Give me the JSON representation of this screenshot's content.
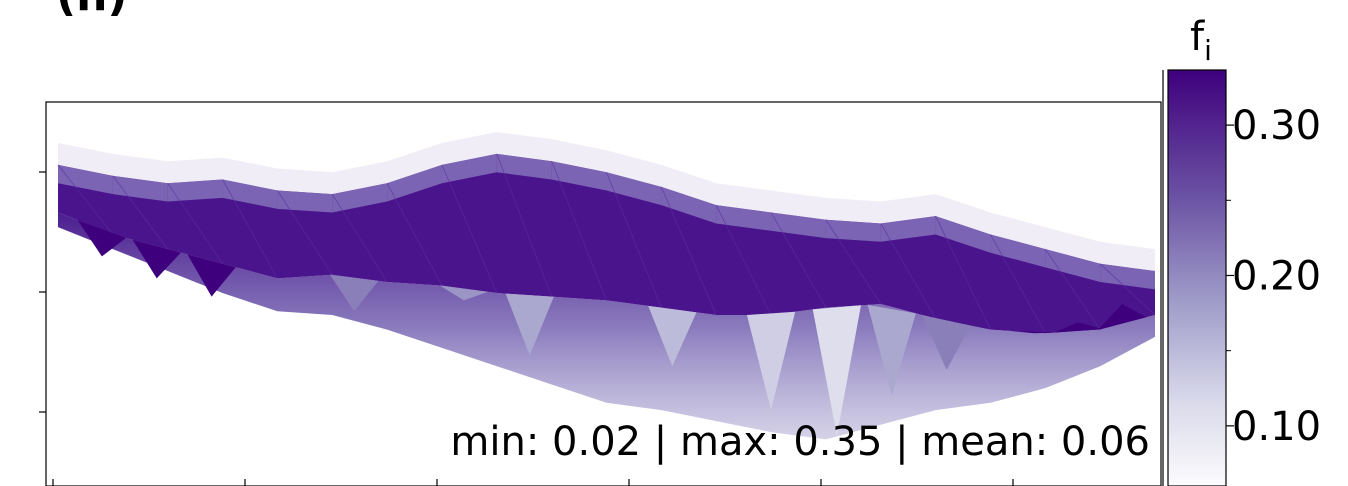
{
  "panel_label": "(h)",
  "chart_data": {
    "type": "heatmap",
    "title": "",
    "xlabel": "",
    "ylabel": "",
    "stats_text": "min: 0.02 | max: 0.35 | mean: 0.06",
    "stats": {
      "min": 0.02,
      "max": 0.35,
      "mean": 0.06
    },
    "colorbar": {
      "label": "f",
      "label_subscript": "i",
      "ticks": [
        "0.30",
        "0.20",
        "0.10"
      ],
      "tick_values": [
        0.3,
        0.2,
        0.1
      ],
      "minor_tick_values": [
        0.25,
        0.15
      ],
      "range": [
        0.06,
        0.33
      ],
      "colormap": "Purples",
      "color_low": "#fcfbfd",
      "color_high": "#3f007d"
    },
    "x_ticks_count": 6,
    "y_ticks_count": 3,
    "x_range": [
      0,
      100
    ],
    "y_range": [
      0,
      100
    ],
    "band": {
      "x": [
        0,
        5,
        10,
        15,
        20,
        25,
        30,
        35,
        40,
        45,
        50,
        55,
        60,
        65,
        70,
        75,
        80,
        85,
        90,
        95,
        100
      ],
      "top": [
        85,
        82,
        80,
        81,
        78,
        77,
        80,
        85,
        88,
        86,
        83,
        79,
        74,
        72,
        70,
        69,
        71,
        66,
        62,
        58,
        56
      ],
      "dark_bottom": [
        72,
        66,
        62,
        58,
        54,
        55,
        53,
        52,
        50,
        49,
        48,
        46,
        44,
        44,
        46,
        47,
        43,
        40,
        39,
        40,
        44
      ],
      "fade_bottom": [
        68,
        62,
        56,
        50,
        45,
        44,
        40,
        35,
        30,
        25,
        20,
        18,
        15,
        12,
        10,
        14,
        18,
        20,
        24,
        30,
        38
      ]
    },
    "spikes": [
      {
        "x": 4,
        "y": 60,
        "value": 0.33
      },
      {
        "x": 9,
        "y": 54,
        "value": 0.33
      },
      {
        "x": 14,
        "y": 49,
        "value": 0.33
      },
      {
        "x": 27,
        "y": 45,
        "value": 0.22
      },
      {
        "x": 37,
        "y": 48,
        "value": 0.2
      },
      {
        "x": 43,
        "y": 33,
        "value": 0.18
      },
      {
        "x": 56,
        "y": 30,
        "value": 0.16
      },
      {
        "x": 65,
        "y": 18,
        "value": 0.14
      },
      {
        "x": 71,
        "y": 11,
        "value": 0.12
      },
      {
        "x": 76,
        "y": 22,
        "value": 0.18
      },
      {
        "x": 81,
        "y": 29,
        "value": 0.22
      },
      {
        "x": 89,
        "y": 39,
        "value": 0.33
      },
      {
        "x": 93,
        "y": 42,
        "value": 0.33
      },
      {
        "x": 97,
        "y": 47,
        "value": 0.33
      }
    ]
  }
}
